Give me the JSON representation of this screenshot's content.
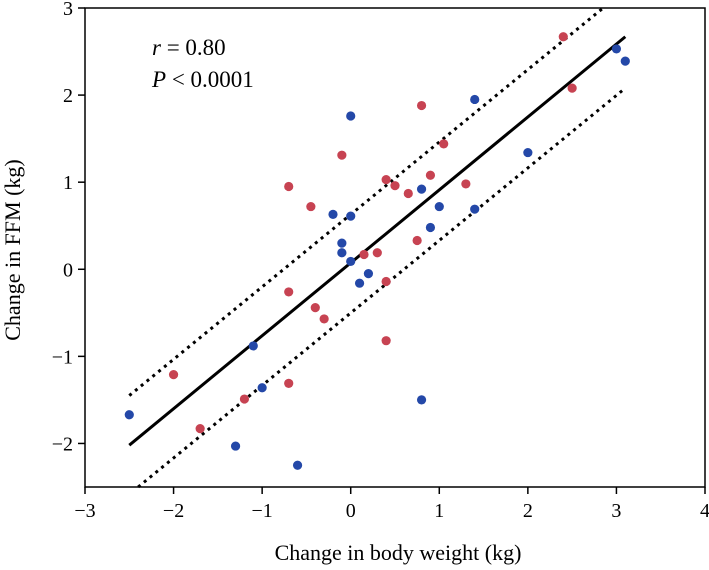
{
  "chart_data": {
    "type": "scatter",
    "title": "",
    "xlabel": "Change in body weight (kg)",
    "ylabel": "Change in FFM (kg)",
    "xlim": [
      -3,
      4
    ],
    "ylim": [
      -2.5,
      3
    ],
    "xticks": [
      -3,
      -2,
      -1,
      0,
      1,
      2,
      3,
      4
    ],
    "yticks": [
      -2,
      -1,
      0,
      1,
      2,
      3
    ],
    "xtick_labels": [
      "−3",
      "−2",
      "−1",
      "0",
      "1",
      "2",
      "3",
      "4"
    ],
    "ytick_labels": [
      "−2",
      "−1",
      "0",
      "1",
      "2",
      "3"
    ],
    "grid": false,
    "annotations": {
      "r_symbol": "r",
      "r_value": " = 0.80",
      "p_symbol": "P",
      "p_value": " < 0.0001"
    },
    "series": [
      {
        "name": "blue",
        "color": "#2448a8",
        "points": [
          {
            "x": -2.5,
            "y": -1.67
          },
          {
            "x": -1.3,
            "y": -2.03
          },
          {
            "x": -1.1,
            "y": -0.88
          },
          {
            "x": -1.0,
            "y": -1.36
          },
          {
            "x": -0.6,
            "y": -2.25
          },
          {
            "x": -0.2,
            "y": 0.63
          },
          {
            "x": -0.1,
            "y": 0.3
          },
          {
            "x": -0.1,
            "y": 0.19
          },
          {
            "x": 0.0,
            "y": 1.76
          },
          {
            "x": 0.0,
            "y": 0.61
          },
          {
            "x": 0.0,
            "y": 0.09
          },
          {
            "x": 0.1,
            "y": -0.16
          },
          {
            "x": 0.2,
            "y": -0.05
          },
          {
            "x": 0.8,
            "y": 0.92
          },
          {
            "x": 0.8,
            "y": -1.5
          },
          {
            "x": 0.9,
            "y": 0.48
          },
          {
            "x": 1.0,
            "y": 0.72
          },
          {
            "x": 1.4,
            "y": 1.95
          },
          {
            "x": 1.4,
            "y": 0.69
          },
          {
            "x": 2.0,
            "y": 1.34
          },
          {
            "x": 3.0,
            "y": 2.53
          },
          {
            "x": 3.1,
            "y": 2.39
          }
        ]
      },
      {
        "name": "red",
        "color": "#c74352",
        "points": [
          {
            "x": -2.0,
            "y": -1.21
          },
          {
            "x": -1.7,
            "y": -1.83
          },
          {
            "x": -1.2,
            "y": -1.49
          },
          {
            "x": -0.7,
            "y": 0.95
          },
          {
            "x": -0.7,
            "y": -0.26
          },
          {
            "x": -0.7,
            "y": -1.31
          },
          {
            "x": -0.45,
            "y": 0.72
          },
          {
            "x": -0.4,
            "y": -0.44
          },
          {
            "x": -0.3,
            "y": -0.57
          },
          {
            "x": -0.1,
            "y": 1.31
          },
          {
            "x": 0.15,
            "y": 0.17
          },
          {
            "x": 0.3,
            "y": 0.19
          },
          {
            "x": 0.4,
            "y": 1.03
          },
          {
            "x": 0.4,
            "y": -0.14
          },
          {
            "x": 0.4,
            "y": -0.82
          },
          {
            "x": 0.5,
            "y": 0.96
          },
          {
            "x": 0.65,
            "y": 0.87
          },
          {
            "x": 0.75,
            "y": 0.33
          },
          {
            "x": 0.8,
            "y": 1.88
          },
          {
            "x": 0.9,
            "y": 1.08
          },
          {
            "x": 1.05,
            "y": 1.44
          },
          {
            "x": 1.3,
            "y": 0.98
          },
          {
            "x": 2.4,
            "y": 2.67
          },
          {
            "x": 2.5,
            "y": 2.08
          }
        ]
      }
    ],
    "regression": {
      "fit": {
        "x": [
          -2.5,
          3.1
        ],
        "y": [
          -2.02,
          2.67
        ]
      },
      "upper_ci": {
        "x": [
          -2.5,
          2.85
        ],
        "y": [
          -1.45,
          3.0
        ]
      },
      "lower_ci": {
        "x": [
          -2.4,
          3.1
        ],
        "y": [
          -2.5,
          2.08
        ]
      }
    }
  }
}
